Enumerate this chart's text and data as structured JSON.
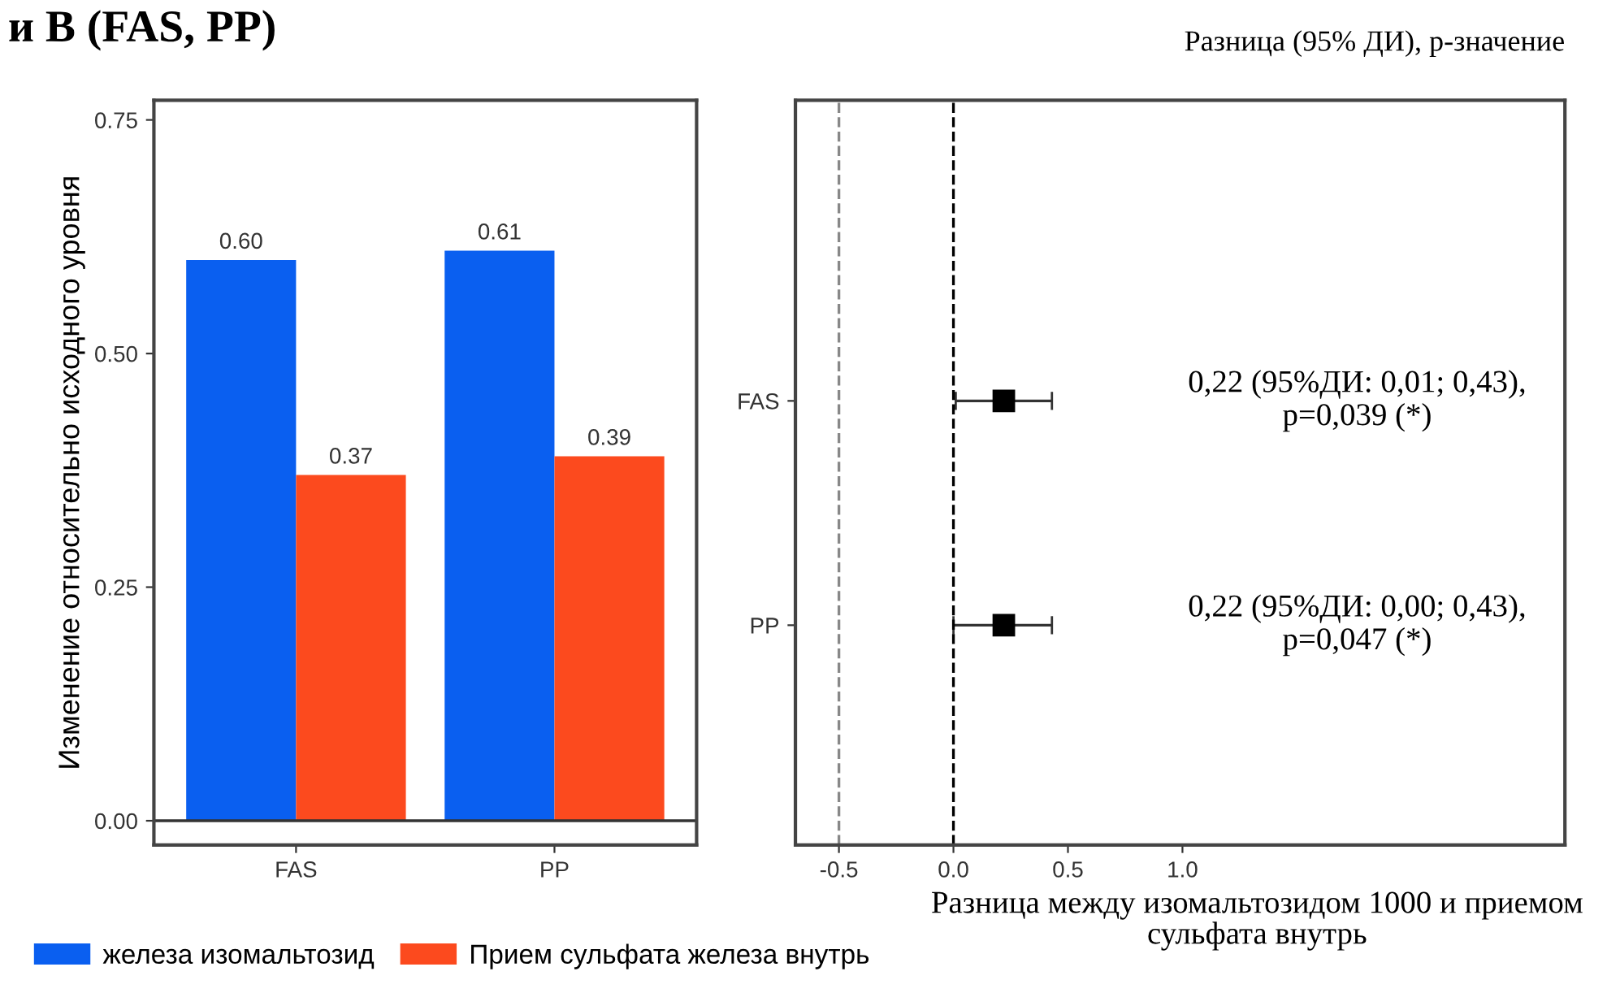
{
  "chart_data": [
    {
      "type": "bar",
      "title": "и В (FAS, PP)",
      "ylabel": "Изменение относительно исходного уровня",
      "categories": [
        "FAS",
        "PP"
      ],
      "series": [
        {
          "name": "железа изомальтозид",
          "color": "#0a5ff0",
          "values": [
            0.6,
            0.61
          ],
          "value_labels": [
            "0.60",
            "0.61"
          ]
        },
        {
          "name": "Прием сульфата железа внутрь",
          "color": "#fc4a1e",
          "values": [
            0.37,
            0.39
          ],
          "value_labels": [
            "0.37",
            "0.39"
          ]
        }
      ],
      "ylim": [
        -0.026,
        0.771
      ],
      "yticks": [
        {
          "value": 0,
          "label": "0.00"
        },
        {
          "value": 0.25,
          "label": "0.25"
        },
        {
          "value": 0.5,
          "label": "0.50"
        },
        {
          "value": 0.75,
          "label": "0.75"
        }
      ],
      "ref_lines": [
        {
          "axis": "y",
          "value": 0,
          "color": "#333333"
        }
      ],
      "legend": "bottom"
    },
    {
      "type": "scatter",
      "orientation": "horizontal",
      "title": "Разница (95% ДИ), р-значение",
      "xlabel": "Разница между изомальтозидом 1000 и приемом\nсульфата внутрь",
      "categories": [
        "FAS",
        "PP"
      ],
      "values": [
        0.22,
        0.22
      ],
      "errors": [
        [
          0.01,
          0.43
        ],
        [
          0.0,
          0.43
        ]
      ],
      "color": "#000000",
      "marker": "square",
      "annotations": [
        "0,22 (95%ДИ: 0,01; 0,43),\np=0,039 (*)",
        "0,22 (95%ДИ: 0,00; 0,43),\np=0,047 (*)"
      ],
      "xlim": [
        -0.69,
        2.67
      ],
      "xticks": [
        -0.5,
        {
          "value": 0,
          "label": "0.0"
        },
        0.5,
        {
          "value": 1,
          "label": "1.0"
        }
      ],
      "ref_lines": [
        {
          "axis": "x",
          "value": -0.5,
          "color": "#888888",
          "line_style": "dashed"
        },
        {
          "axis": "x",
          "value": 0,
          "color": "#000000",
          "line_style": "dashed"
        }
      ]
    }
  ]
}
